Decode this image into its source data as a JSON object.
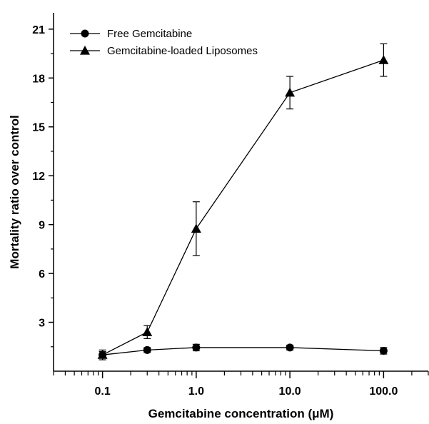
{
  "chart_data": {
    "type": "line",
    "xlabel": "Gemcitabine concentration (μM)",
    "ylabel": "Mortality ratio over control",
    "x_scale": "log",
    "xlim": [
      0.03,
      300
    ],
    "ylim": [
      0,
      22
    ],
    "x_ticks": [
      0.1,
      1.0,
      10.0,
      100.0
    ],
    "x_tick_labels": [
      "0.1",
      "1.0",
      "10.0",
      "100.0"
    ],
    "y_ticks": [
      3,
      6,
      9,
      12,
      15,
      18,
      21
    ],
    "y_tick_labels": [
      "3",
      "6",
      "9",
      "12",
      "15",
      "18",
      "21"
    ],
    "grid": false,
    "legend_position": "top-left",
    "series": [
      {
        "name": "Free Gemcitabine",
        "marker": "circle",
        "x": [
          0.1,
          0.3,
          1.0,
          10.0,
          100.0
        ],
        "y": [
          1.0,
          1.3,
          1.45,
          1.45,
          1.25
        ],
        "err": [
          0.2,
          0.15,
          0.2,
          0.15,
          0.2
        ]
      },
      {
        "name": "Gemcitabine-loaded Liposomes",
        "marker": "triangle",
        "x": [
          0.1,
          0.3,
          1.0,
          10.0,
          100.0
        ],
        "y": [
          1.0,
          2.4,
          8.75,
          17.1,
          19.1
        ],
        "err": [
          0.3,
          0.4,
          1.65,
          1.0,
          1.0
        ]
      }
    ]
  }
}
